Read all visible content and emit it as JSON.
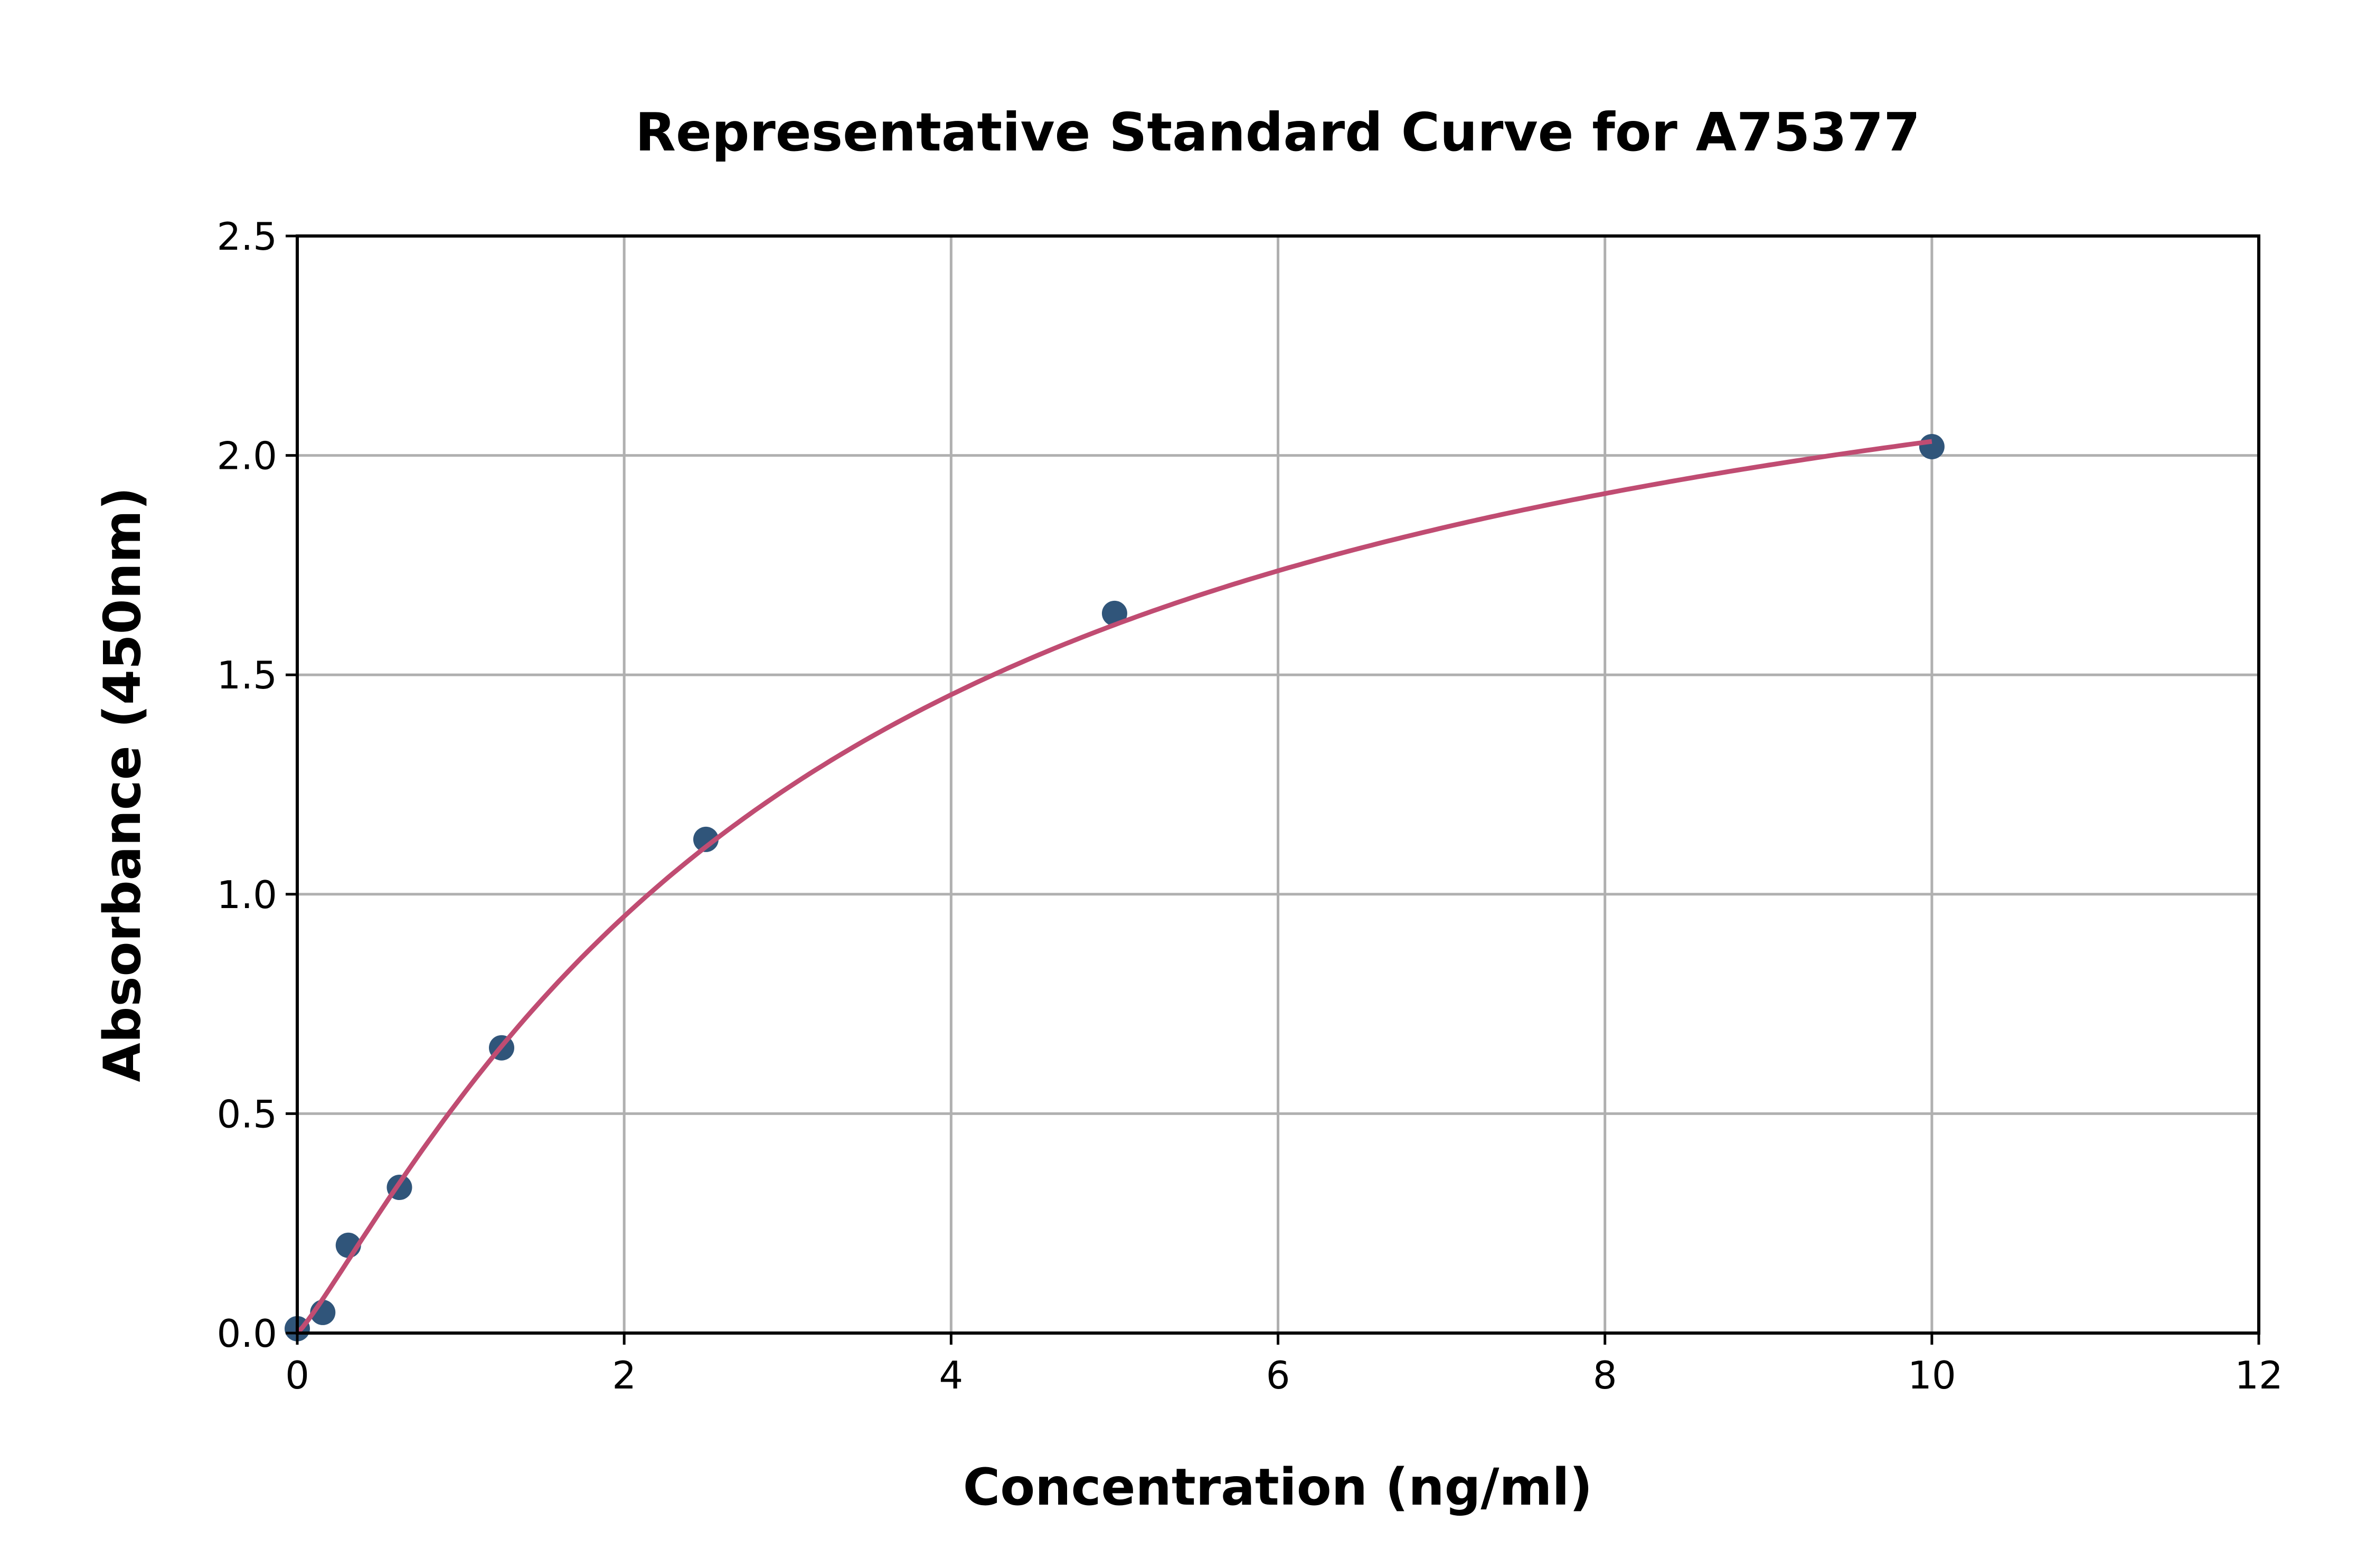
{
  "chart_data": {
    "type": "scatter",
    "title": "Representative Standard Curve for A75377",
    "xlabel": "Concentration (ng/ml)",
    "ylabel": "Absorbance (450nm)",
    "xlim": [
      0,
      12
    ],
    "ylim": [
      0,
      2.5
    ],
    "xticks": [
      "0",
      "2",
      "4",
      "6",
      "8",
      "10",
      "12"
    ],
    "yticks": [
      "0.0",
      "0.5",
      "1.0",
      "1.5",
      "2.0",
      "2.5"
    ],
    "grid": true,
    "points": {
      "x": [
        0,
        0.156,
        0.3125,
        0.625,
        1.25,
        2.5,
        5,
        10
      ],
      "y": [
        0.01,
        0.047,
        0.2,
        0.332,
        0.65,
        1.125,
        1.64,
        2.02
      ]
    },
    "fit_curve": {
      "type": "4PL fit line",
      "x_range": [
        0,
        10
      ]
    },
    "colors": {
      "points": "#30557a",
      "curve": "#c04c72",
      "grid": "#b0b0b0"
    }
  }
}
